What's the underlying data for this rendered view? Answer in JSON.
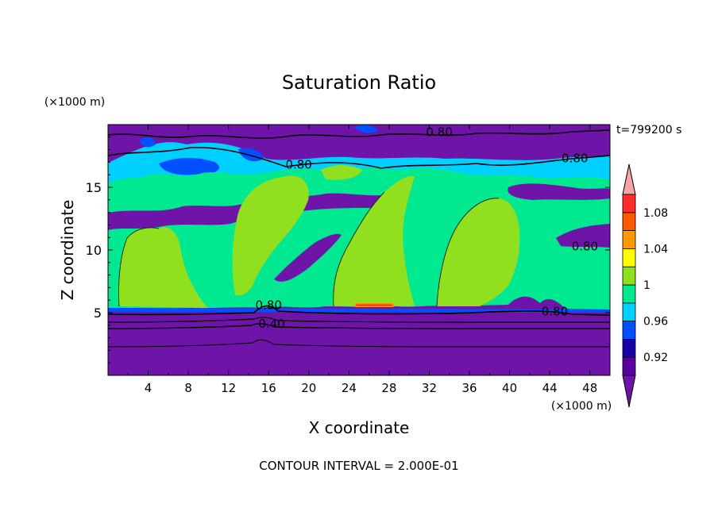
{
  "chart_data": {
    "type": "heatmap",
    "title": "Saturation Ratio",
    "xlabel": "X coordinate",
    "ylabel": "Z coordinate",
    "x_unit": "(×1000 m)",
    "y_unit": "(×1000 m)",
    "time_label": "t=799200 s",
    "footer": "CONTOUR INTERVAL = 2.000E-01",
    "xlim": [
      0,
      50
    ],
    "ylim": [
      0,
      20
    ],
    "x_ticks": [
      4,
      8,
      12,
      16,
      20,
      24,
      28,
      32,
      36,
      40,
      44,
      48
    ],
    "y_ticks": [
      5,
      10,
      15
    ],
    "colorbar": {
      "levels": [
        0.9,
        0.92,
        0.94,
        0.96,
        0.98,
        1.0,
        1.02,
        1.04,
        1.06,
        1.08,
        1.1
      ],
      "labels": [
        {
          "value": 0.92,
          "text": "0.92"
        },
        {
          "value": 0.96,
          "text": "0.96"
        },
        {
          "value": 1.0,
          "text": "1"
        },
        {
          "value": 1.04,
          "text": "1.04"
        },
        {
          "value": 1.08,
          "text": "1.08"
        }
      ],
      "colors": [
        "#5a00a0",
        "#1800a8",
        "#0050ff",
        "#00d0ff",
        "#00e890",
        "#90e020",
        "#ffff00",
        "#ff9900",
        "#ff5a00",
        "#ff2a2a"
      ],
      "under_color": "#6f14a8",
      "over_color": "#f5a5a5"
    },
    "contour_labels": [
      {
        "text": "0.80",
        "x": 33.0,
        "z": 19.4
      },
      {
        "text": "0.80",
        "x": 46.5,
        "z": 17.3
      },
      {
        "text": "0.80",
        "x": 19.0,
        "z": 16.8
      },
      {
        "text": "0.80",
        "x": 16.0,
        "z": 5.6
      },
      {
        "text": "0.80",
        "x": 44.5,
        "z": 5.1
      },
      {
        "text": "0.40",
        "x": 16.3,
        "z": 4.1
      },
      {
        "text": "0.80",
        "x": 47.5,
        "z": 10.3
      }
    ]
  },
  "colors": {
    "deep_purple": "#6f14a8",
    "teal_green": "#00e890",
    "yellow_green": "#90e020"
  }
}
